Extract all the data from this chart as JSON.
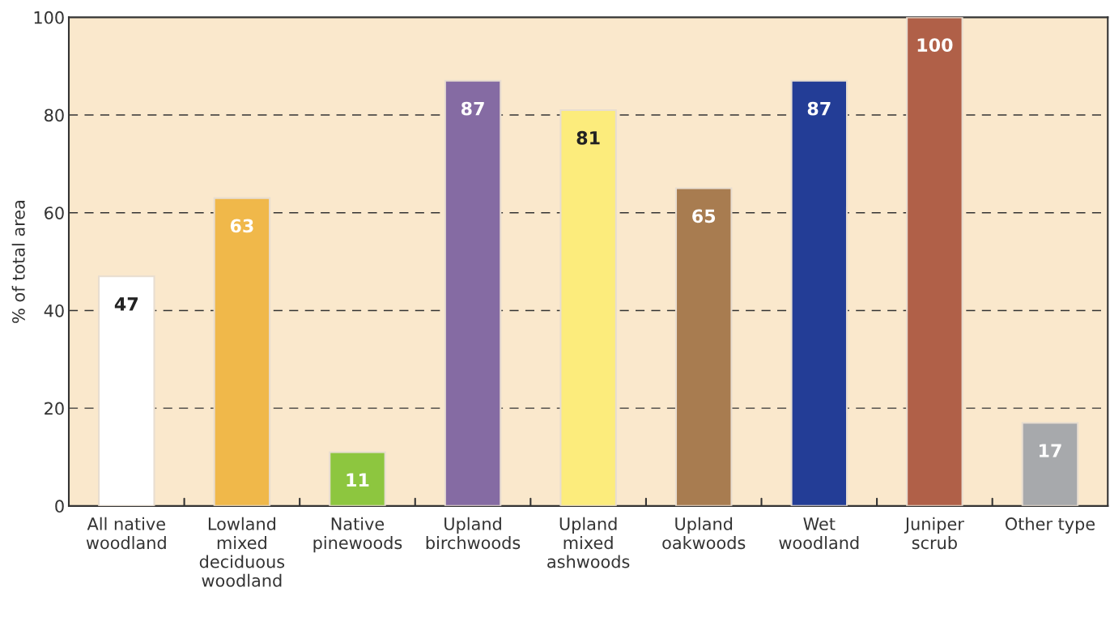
{
  "chart_data": {
    "type": "bar",
    "ylabel": "% of total area",
    "categories": [
      "All native\nwoodland",
      "Lowland\nmixed\ndeciduous\nwoodland",
      "Native\npinewoods",
      "Upland\nbirchwoods",
      "Upland\nmixed\nashwoods",
      "Upland\noakwoods",
      "Wet\nwoodland",
      "Juniper\nscrub",
      "Other type"
    ],
    "values": [
      47,
      63,
      11,
      87,
      81,
      65,
      87,
      100,
      17
    ],
    "colors": [
      "#ffffff",
      "#f0b84a",
      "#8dc63f",
      "#856ba3",
      "#fcec7c",
      "#a87c50",
      "#233d96",
      "#b06048",
      "#a7a9ac"
    ],
    "ylim": [
      0,
      100
    ],
    "yticks": [
      0,
      20,
      40,
      60,
      80,
      100
    ],
    "grid": "y",
    "data_labels": true
  }
}
